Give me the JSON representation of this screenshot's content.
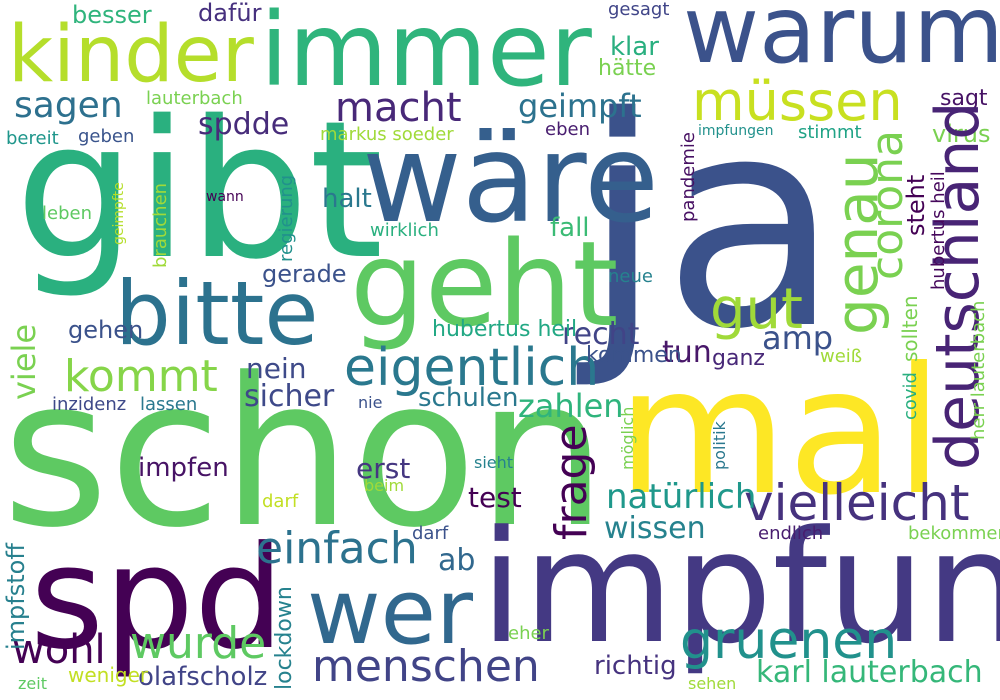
{
  "words": [
    {
      "text": "ja",
      "color": "#3b528b"
    },
    {
      "text": "schon",
      "color": "#5ec962"
    },
    {
      "text": "mal",
      "color": "#fde725"
    },
    {
      "text": "gibt",
      "color": "#2ab07f"
    },
    {
      "text": "impfung",
      "color": "#443983"
    },
    {
      "text": "wäre",
      "color": "#355f8d"
    },
    {
      "text": "immer",
      "color": "#2fb47c"
    },
    {
      "text": "geht",
      "color": "#5ec962"
    },
    {
      "text": "spd",
      "color": "#440154"
    },
    {
      "text": "warum",
      "color": "#3b528b"
    },
    {
      "text": "wer",
      "color": "#31688e"
    },
    {
      "text": "kinder",
      "color": "#b5de2b"
    },
    {
      "text": "bitte",
      "color": "#2c728e"
    },
    {
      "text": "menschen",
      "color": "#482475"
    },
    {
      "text": "deutschland",
      "color": "#414487"
    },
    {
      "text": "vielleicht",
      "color": "#46327e"
    },
    {
      "text": "eigentlich",
      "color": "#2a788e"
    },
    {
      "text": "gruenen",
      "color": "#21918c"
    },
    {
      "text": "genau",
      "color": "#7ad151"
    },
    {
      "text": "müssen",
      "color": "#c8e020"
    },
    {
      "text": "einfach",
      "color": "#2c728e"
    },
    {
      "text": "frage",
      "color": "#440154"
    },
    {
      "text": "gut",
      "color": "#a0da39"
    },
    {
      "text": "macht",
      "color": "#482878"
    },
    {
      "text": "corona",
      "color": "#7ad151"
    },
    {
      "text": "kommt",
      "color": "#86d549"
    },
    {
      "text": "wurde",
      "color": "#5ec962"
    },
    {
      "text": "wohl",
      "color": "#440154"
    },
    {
      "text": "natürlich",
      "color": "#1f988b"
    },
    {
      "text": "karl lauterbach",
      "color": "#35b779"
    },
    {
      "text": "geimpft",
      "color": "#2c728e"
    },
    {
      "text": "sagen",
      "color": "#2d708e"
    },
    {
      "text": "zahlen",
      "color": "#2fb47c"
    },
    {
      "text": "spdde",
      "color": "#472c7a"
    },
    {
      "text": "wissen",
      "color": "#26828e"
    },
    {
      "text": "sicher",
      "color": "#3e4989"
    },
    {
      "text": "olafscholz",
      "color": "#414487"
    },
    {
      "text": "amp",
      "color": "#3b528b"
    },
    {
      "text": "tun",
      "color": "#481769"
    },
    {
      "text": "impfen",
      "color": "#471365"
    },
    {
      "text": "recht",
      "color": "#414487"
    },
    {
      "text": "erst",
      "color": "#453781"
    },
    {
      "text": "test",
      "color": "#440154"
    },
    {
      "text": "richtig",
      "color": "#46337f"
    },
    {
      "text": "nein",
      "color": "#3e4a89"
    },
    {
      "text": "ab",
      "color": "#31688e"
    },
    {
      "text": "schulen",
      "color": "#2a788e"
    },
    {
      "text": "viele",
      "color": "#7ad151"
    },
    {
      "text": "impfstoff",
      "color": "#27808e"
    },
    {
      "text": "lockdown",
      "color": "#26828e"
    },
    {
      "text": "besser",
      "color": "#2fb47c"
    },
    {
      "text": "dafür",
      "color": "#46307e"
    },
    {
      "text": "gesagt",
      "color": "#404588"
    },
    {
      "text": "klar",
      "color": "#29af7f"
    },
    {
      "text": "hätte",
      "color": "#7ad151"
    },
    {
      "text": "sagt",
      "color": "#471365"
    },
    {
      "text": "virus",
      "color": "#7ad151"
    },
    {
      "text": "stimmt",
      "color": "#20a386"
    },
    {
      "text": "lauterbach",
      "color": "#7ad151"
    },
    {
      "text": "markus soeder",
      "color": "#a0da39"
    },
    {
      "text": "eben",
      "color": "#481d6f"
    },
    {
      "text": "impfungen",
      "color": "#21918c"
    },
    {
      "text": "pandemie",
      "color": "#471063"
    },
    {
      "text": "bereit",
      "color": "#1f968b"
    },
    {
      "text": "geben",
      "color": "#3a548c"
    },
    {
      "text": "leben",
      "color": "#5ec962"
    },
    {
      "text": "wann",
      "color": "#440154"
    },
    {
      "text": "geimpfte",
      "color": "#b5de2b"
    },
    {
      "text": "brauchen",
      "color": "#a0da39"
    },
    {
      "text": "regierung",
      "color": "#21918c"
    },
    {
      "text": "halt",
      "color": "#2a788e"
    },
    {
      "text": "wirklich",
      "color": "#2ab07f"
    },
    {
      "text": "gerade",
      "color": "#3b528b"
    },
    {
      "text": "fall",
      "color": "#3bbb75"
    },
    {
      "text": "neue",
      "color": "#26828e"
    },
    {
      "text": "steht",
      "color": "#440154"
    },
    {
      "text": "hubertus heil",
      "color": "#46085c"
    },
    {
      "text": "kommen",
      "color": "#22a884"
    },
    {
      "text": "ganz",
      "color": "#3b528b"
    },
    {
      "text": "weiß",
      "color": "#482878"
    },
    {
      "text": "gehen",
      "color": "#a0da39"
    },
    {
      "text": "gar",
      "color": "#3b528b"
    },
    {
      "text": "inzidenz",
      "color": "#3e4989"
    },
    {
      "text": "lassen",
      "color": "#2a788e"
    },
    {
      "text": "nie",
      "color": "#3b528b"
    },
    {
      "text": "covid",
      "color": "#29af7f"
    },
    {
      "text": "sollten",
      "color": "#7ad151"
    },
    {
      "text": "herr lauterbach",
      "color": "#7ad151"
    },
    {
      "text": "möglich",
      "color": "#7ad151"
    },
    {
      "text": "politik",
      "color": "#2a788e"
    },
    {
      "text": "sieht",
      "color": "#26828e"
    },
    {
      "text": "beim",
      "color": "#a0da39"
    },
    {
      "text": "darf",
      "color": "#c2df23"
    },
    {
      "text": "endlich",
      "color": "#3b528b"
    },
    {
      "text": "bekommen",
      "color": "#481d6f"
    },
    {
      "text": "eher",
      "color": "#7ad151"
    },
    {
      "text": "weniger",
      "color": "#7ad151"
    },
    {
      "text": "zeit",
      "color": "#c2df23"
    },
    {
      "text": "sehen",
      "color": "#5ec962"
    },
    {
      "text": "leute",
      "color": "#a0da39"
    }
  ]
}
